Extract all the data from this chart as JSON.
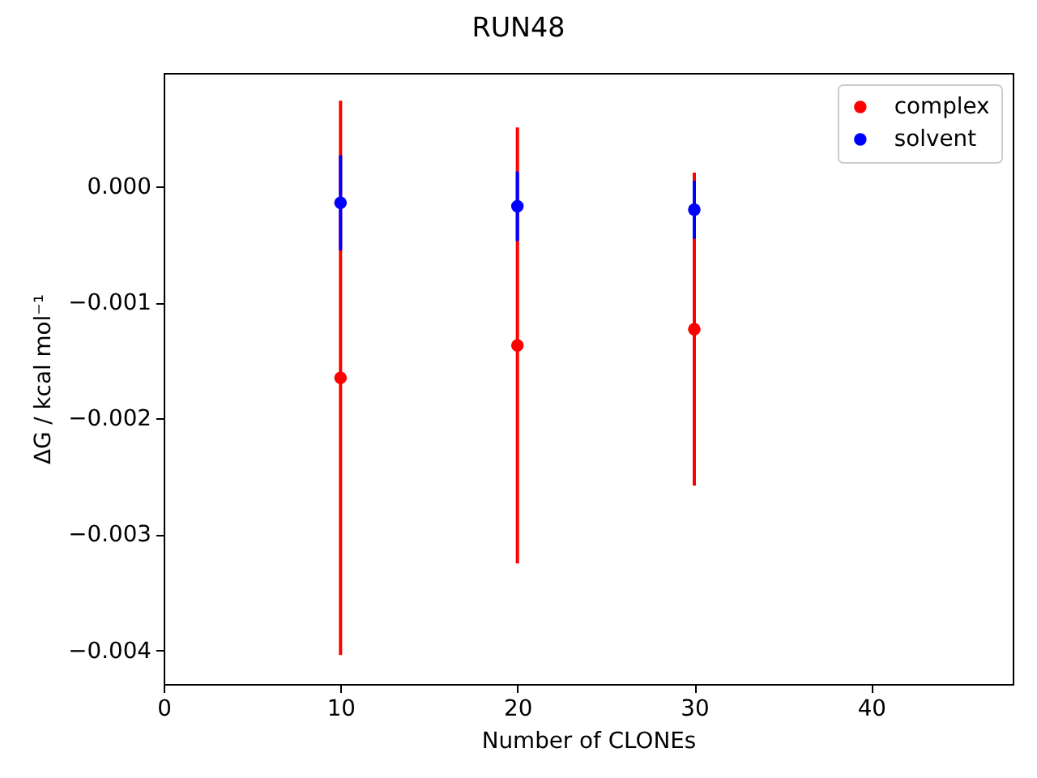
{
  "chart_data": {
    "type": "scatter",
    "title": "RUN48",
    "xlabel": "Number of CLONEs",
    "ylabel": "ΔG / kcal mol⁻¹",
    "x": [
      10,
      20,
      30
    ],
    "series": [
      {
        "name": "complex",
        "color": "#ff0000",
        "values": [
          -0.00165,
          -0.00137,
          -0.00123
        ],
        "errors": [
          0.00239,
          0.00188,
          0.00135
        ]
      },
      {
        "name": "solvent",
        "color": "#0000ff",
        "values": [
          -0.00014,
          -0.00017,
          -0.0002
        ],
        "errors": [
          0.00041,
          0.0003,
          0.00025
        ]
      }
    ],
    "xlim": [
      0,
      48
    ],
    "xticks": [
      0,
      10,
      20,
      30,
      40
    ],
    "ylim": [
      -0.00429,
      0.00098
    ],
    "yticks": [
      -0.004,
      -0.003,
      -0.002,
      -0.001,
      {
        "value": 0,
        "label": "0.000"
      }
    ],
    "legend": "top right",
    "grid": false,
    "marker": "circle"
  }
}
